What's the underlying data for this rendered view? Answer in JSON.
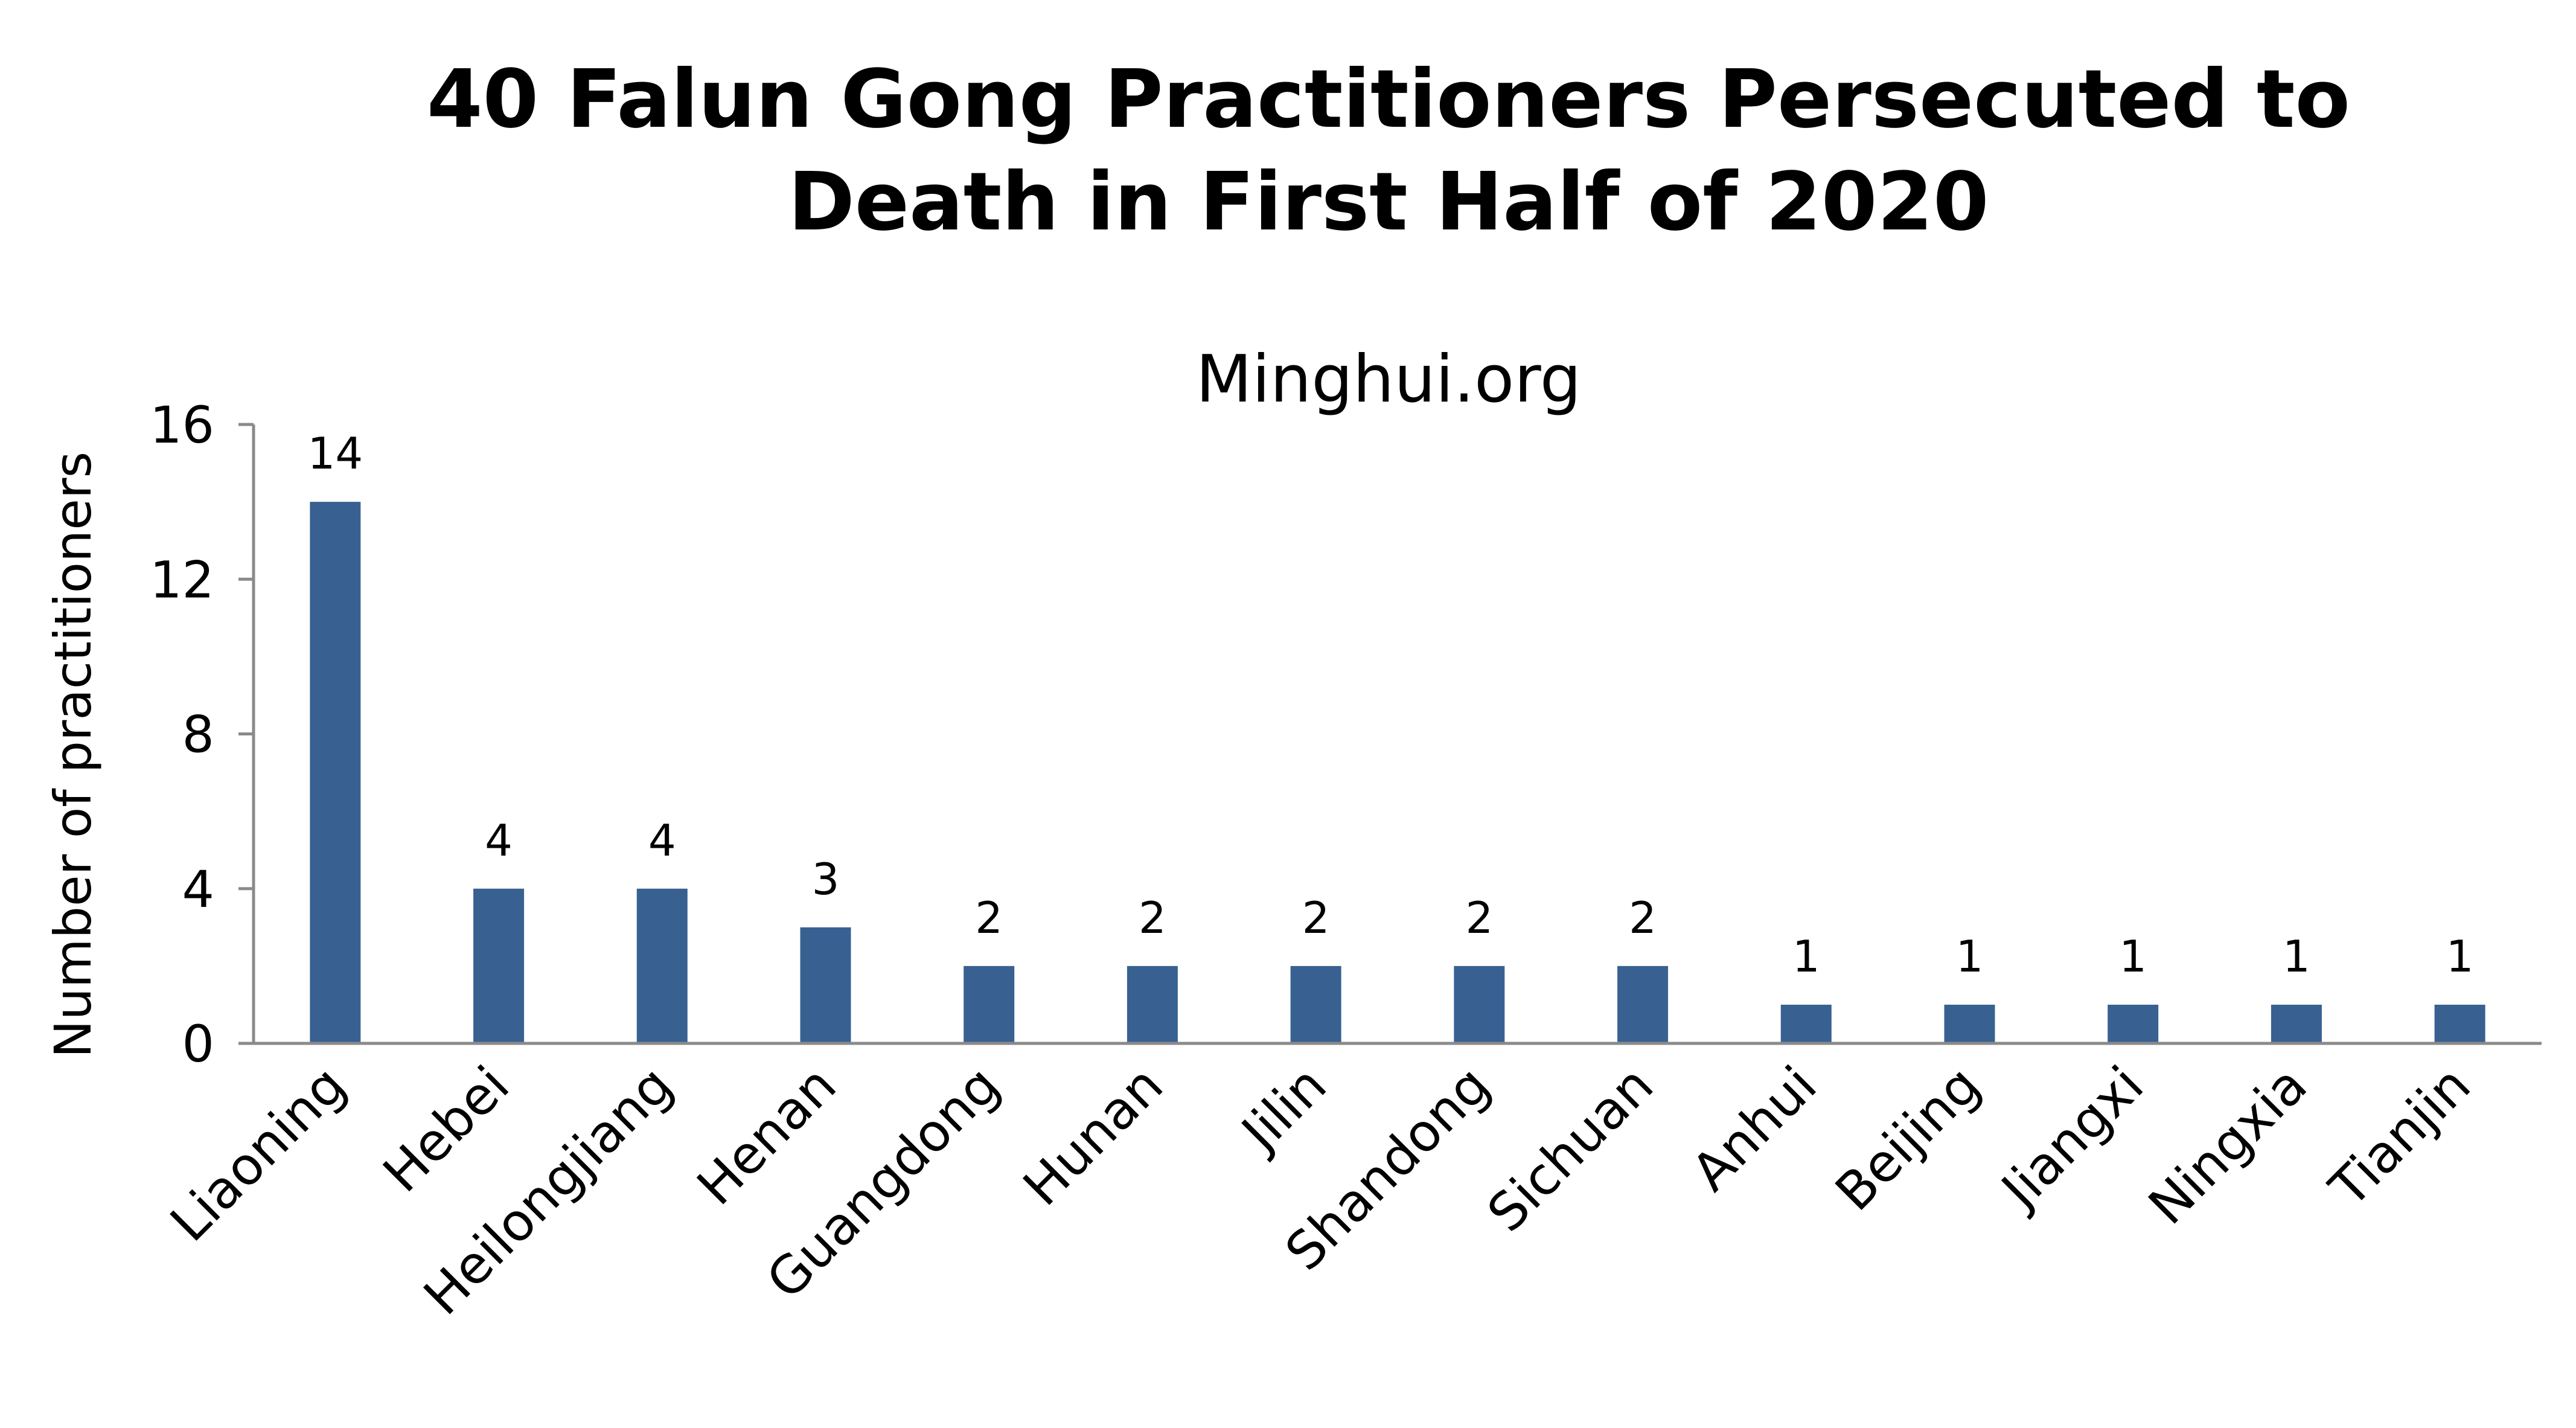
{
  "chart_data": {
    "type": "bar",
    "title_lines": [
      "40 Falun Gong Practitioners Persecuted to",
      "Death in First Half of 2020"
    ],
    "subtitle": "Minghui.org",
    "xlabel": "",
    "ylabel": "Number of practitioners",
    "categories": [
      "Liaoning",
      "Hebei",
      "Heilongjiang",
      "Henan",
      "Guangdong",
      "Hunan",
      "Jilin",
      "Shandong",
      "Sichuan",
      "Anhui",
      "Beijing",
      "Jiangxi",
      "Ningxia",
      "Tianjin"
    ],
    "values": [
      14,
      4,
      4,
      3,
      2,
      2,
      2,
      2,
      2,
      1,
      1,
      1,
      1,
      1
    ],
    "ylim": [
      0,
      16
    ],
    "yticks": [
      0,
      4,
      8,
      12,
      16
    ],
    "data_labels": true,
    "grid": false,
    "legend": "none",
    "colors": {
      "bar": "#386192",
      "axis": "#8a8a8a",
      "text": "#000000"
    }
  }
}
